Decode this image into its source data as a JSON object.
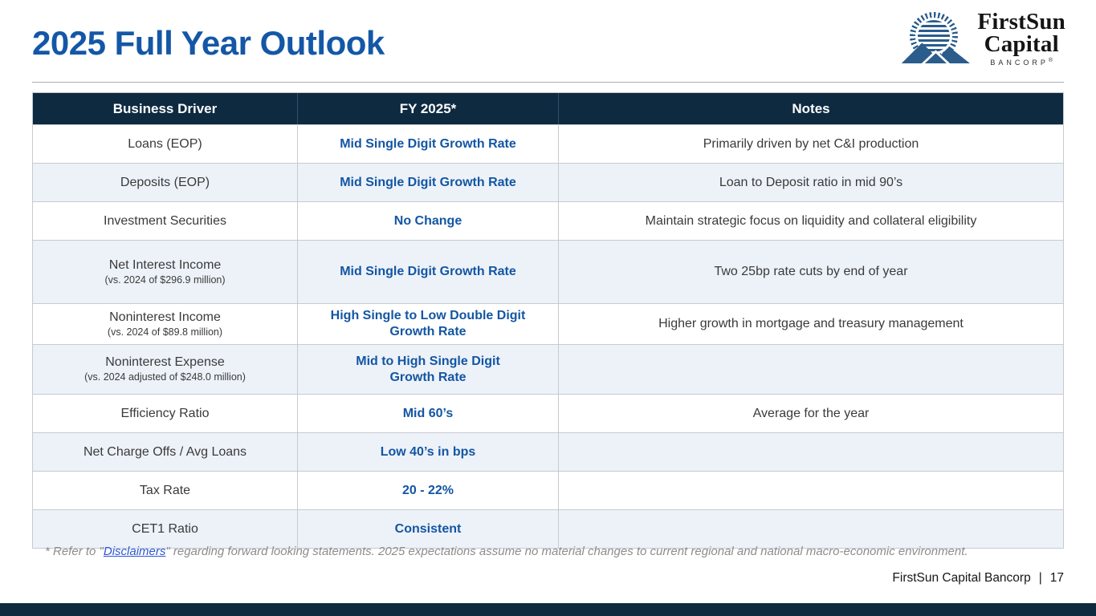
{
  "slide": {
    "title": "2025 Full Year Outlook",
    "footer": {
      "company": "FirstSun Capital Bancorp",
      "separator": "|",
      "page_number": "17"
    }
  },
  "logo": {
    "name_line1": "FirstSun",
    "name_line2": "Capital",
    "subtitle": "BANCORP",
    "registered_mark": "®",
    "brand_blue": "#2A5C8C"
  },
  "table": {
    "headers": [
      "Business Driver",
      "FY 2025*",
      "Notes"
    ],
    "rows": [
      {
        "driver": "Loans (EOP)",
        "driver_sub": "",
        "fy2025": "Mid Single Digit Growth Rate",
        "note": "Primarily driven by net C&I production"
      },
      {
        "driver": "Deposits (EOP)",
        "driver_sub": "",
        "fy2025": "Mid Single Digit Growth Rate",
        "note": "Loan to Deposit ratio in mid 90’s"
      },
      {
        "driver": "Investment Securities",
        "driver_sub": "",
        "fy2025": "No Change",
        "note": "Maintain strategic focus on liquidity and collateral eligibility"
      },
      {
        "driver": "Net Interest Income",
        "driver_sub": "(vs. 2024 of $296.9 million)",
        "fy2025": "Mid Single Digit Growth Rate",
        "note": "Two 25bp rate cuts by end of year"
      },
      {
        "driver": "Noninterest Income",
        "driver_sub": "(vs. 2024 of $89.8 million)",
        "fy2025": "High Single to Low Double Digit\nGrowth Rate",
        "note": "Higher growth in mortgage and treasury management"
      },
      {
        "driver": "Noninterest Expense",
        "driver_sub": "(vs. 2024 adjusted of $248.0 million)",
        "fy2025": "Mid to High Single Digit\nGrowth Rate",
        "note": ""
      },
      {
        "driver": "Efficiency Ratio",
        "driver_sub": "",
        "fy2025": "Mid 60’s",
        "note": "Average for the year"
      },
      {
        "driver": "Net Charge Offs / Avg Loans",
        "driver_sub": "",
        "fy2025": "Low 40’s in bps",
        "note": ""
      },
      {
        "driver": "Tax Rate",
        "driver_sub": "",
        "fy2025": "20 - 22%",
        "note": ""
      },
      {
        "driver": "CET1 Ratio",
        "driver_sub": "",
        "fy2025": "Consistent",
        "note": ""
      }
    ]
  },
  "footnote": {
    "prefix": "* Refer to \"",
    "link_text": "Disclaimers",
    "suffix": "\" regarding forward looking statements. 2025 expectations assume no material changes to current regional and national macro-economic environment."
  },
  "colors": {
    "title_blue": "#1457A6",
    "value_blue": "#1356A3",
    "header_navy": "#0E2A40",
    "row_alt": "#EDF2F9",
    "link_blue": "#2B57D5",
    "bottom_bar": "#0D2A3F"
  }
}
